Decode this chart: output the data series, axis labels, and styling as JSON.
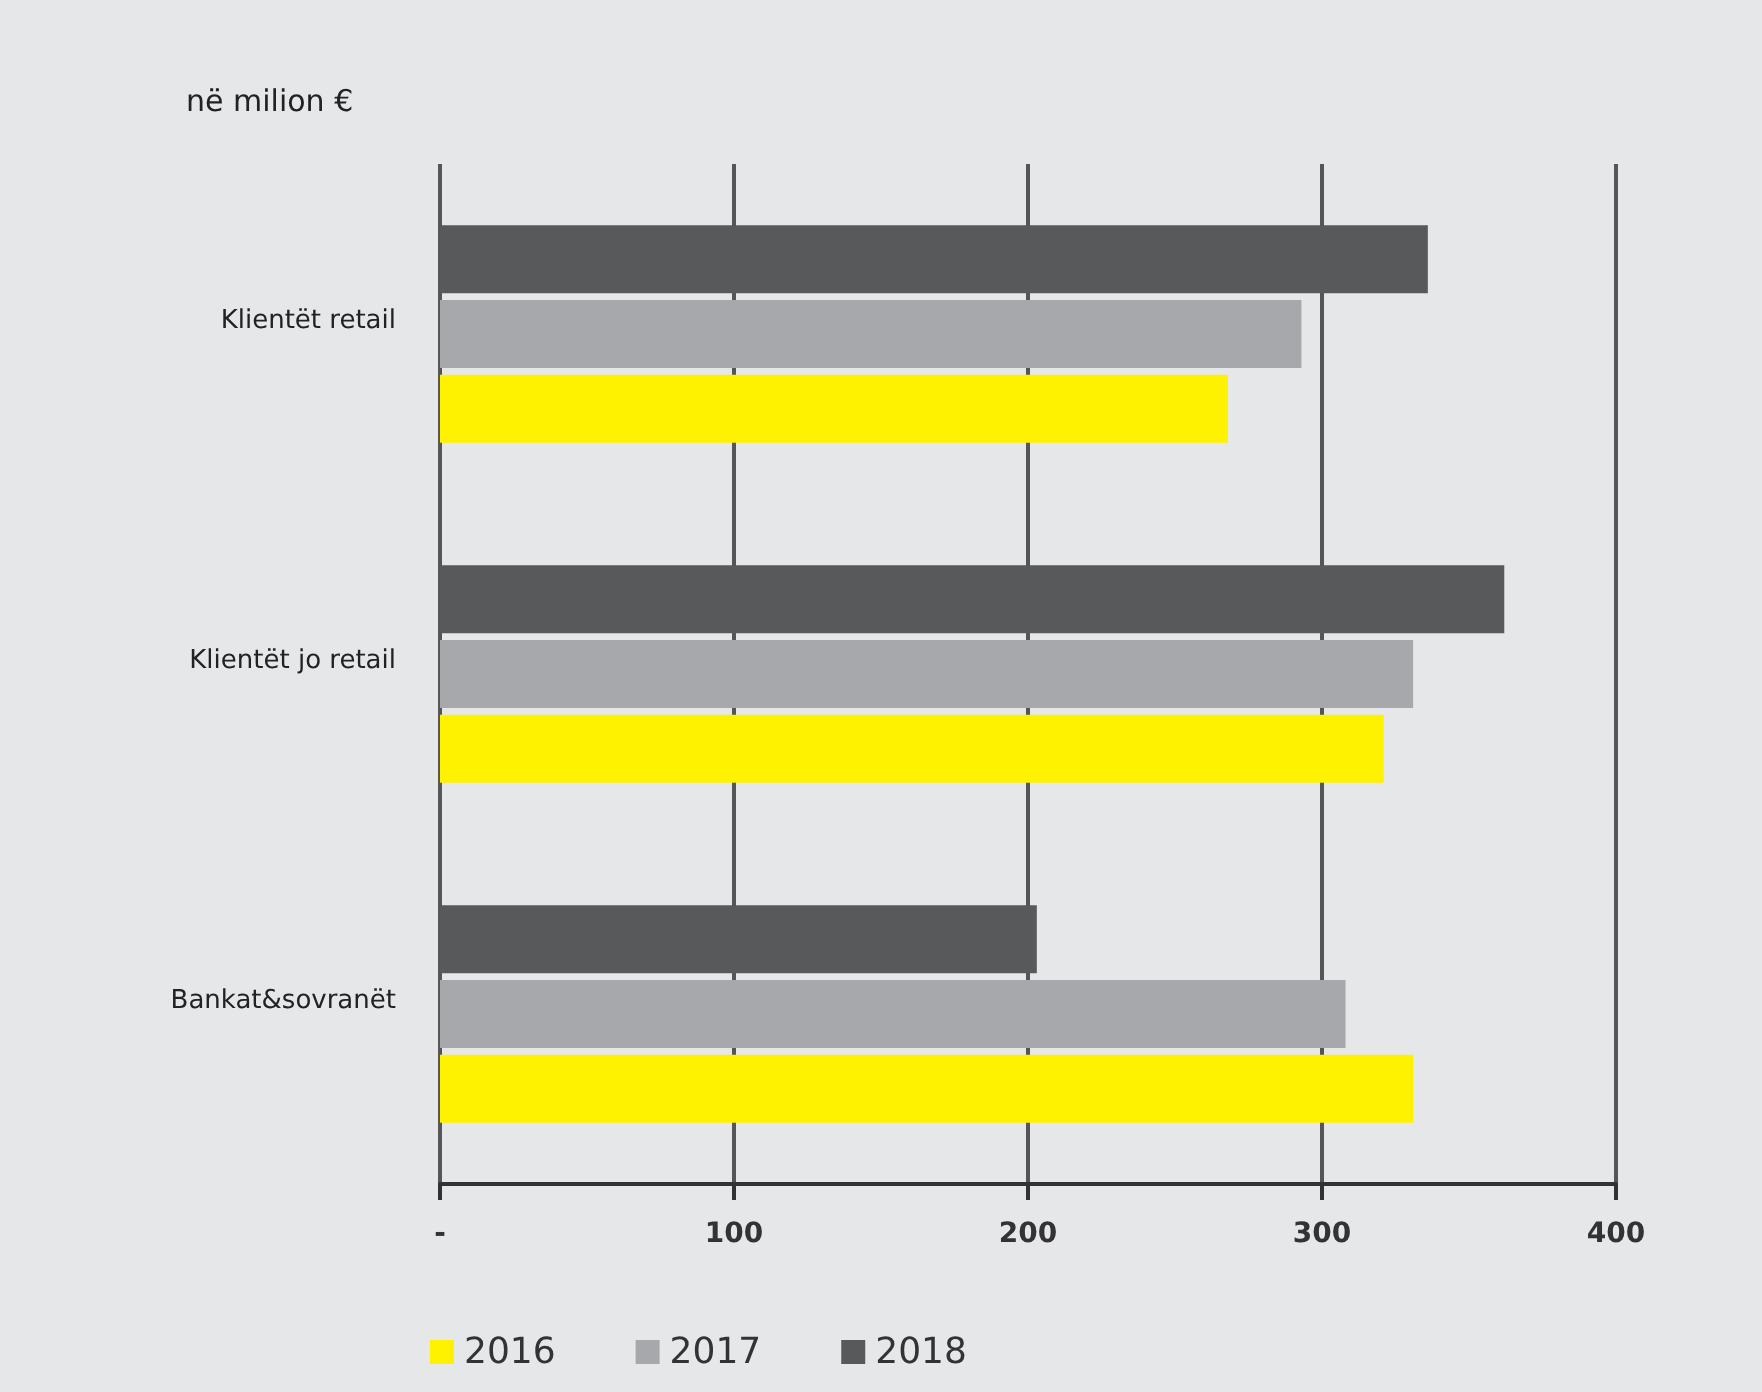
{
  "chart_data": {
    "type": "bar",
    "orientation": "horizontal",
    "ylabel": "në milion €",
    "categories": [
      "Klientët retail",
      "Klientët jo retail",
      "Bankat&sovranët"
    ],
    "series": [
      {
        "name": "2016",
        "color": "#fff200",
        "values": [
          268,
          321,
          331
        ]
      },
      {
        "name": "2017",
        "color": "#a7a8ab",
        "values": [
          293,
          331,
          308
        ]
      },
      {
        "name": "2018",
        "color": "#58595b",
        "values": [
          336,
          362,
          203
        ]
      }
    ],
    "xlim": [
      0,
      400
    ],
    "xticks": [
      {
        "value": 0,
        "label": "-"
      },
      100,
      200,
      300,
      400
    ],
    "grid": "x",
    "legend": "bottom left"
  }
}
